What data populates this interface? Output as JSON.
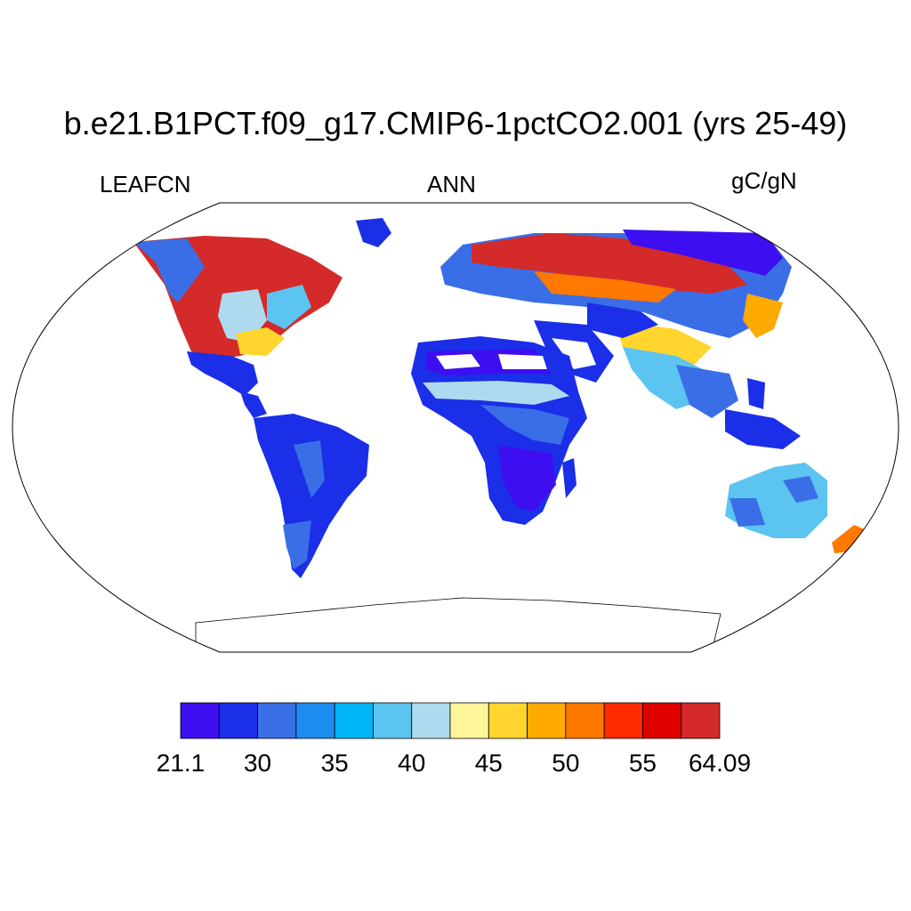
{
  "title": "b.e21.B1PCT.f09_g17.CMIP6-1pctCO2.001 (yrs 25-49)",
  "subtitle_left": "LEAFCN",
  "subtitle_center": "ANN",
  "subtitle_right": "gC/gN",
  "colorbar": {
    "colors": [
      "#3d0ff0",
      "#1b2ee8",
      "#3a6ee6",
      "#1e8cf0",
      "#00b4f8",
      "#5cc4f0",
      "#aedaf0",
      "#fff59a",
      "#ffd52e",
      "#ffaa00",
      "#ff7800",
      "#ff2a00",
      "#e00000",
      "#d42a2a"
    ],
    "labels": [
      "21.1",
      "30",
      "35",
      "40",
      "45",
      "50",
      "55",
      "64.09"
    ]
  },
  "map": {
    "projection": "robinson",
    "land_color": "#ffffff",
    "legend_placement": "bottom"
  }
}
